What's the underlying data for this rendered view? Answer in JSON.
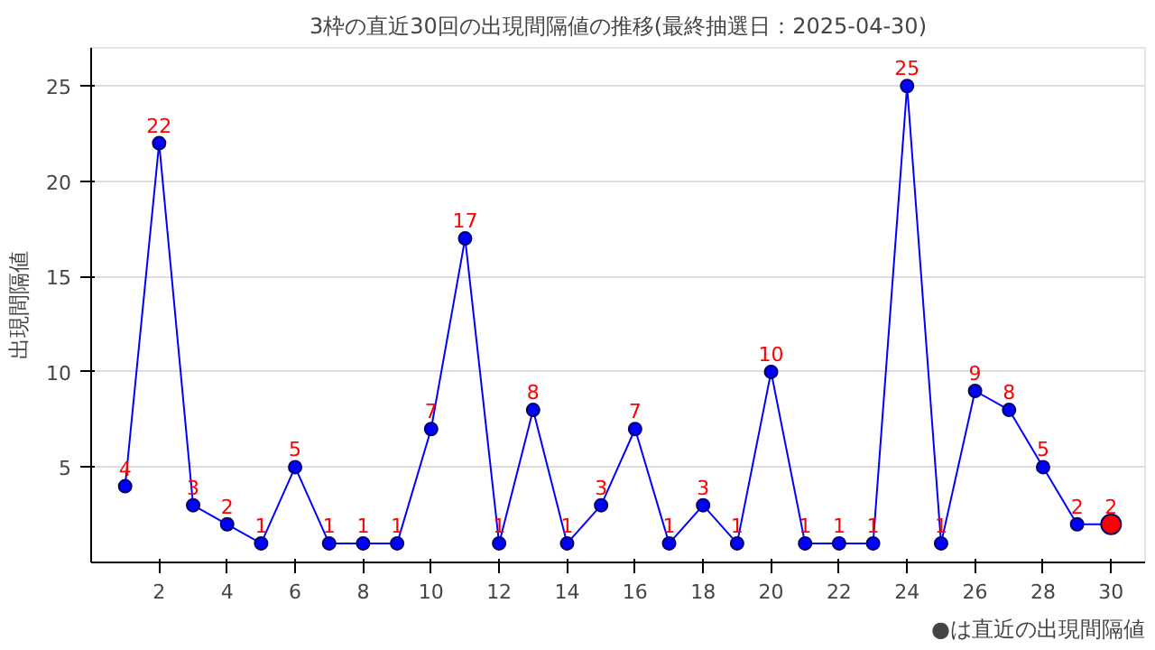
{
  "chart_data": {
    "type": "line",
    "title": "3枠の直近30回の出現間隔値の推移(最終抽選日：2025-04-30)",
    "ylabel": "出現間隔値",
    "x": [
      1,
      2,
      3,
      4,
      5,
      6,
      7,
      8,
      9,
      10,
      11,
      12,
      13,
      14,
      15,
      16,
      17,
      18,
      19,
      20,
      21,
      22,
      23,
      24,
      25,
      26,
      27,
      28,
      29,
      30
    ],
    "series": [
      {
        "color": "#0000ff",
        "colors": [
          "#0000ff",
          "#0000ff",
          "#0000ff",
          "#0000ff",
          "#0000ff",
          "#0000ff",
          "#0000ff",
          "#0000ff",
          "#0000ff",
          "#0000ff",
          "#0000ff",
          "#0000ff",
          "#0000ff",
          "#0000ff",
          "#0000ff",
          "#0000ff",
          "#0000ff",
          "#0000ff",
          "#0000ff",
          "#0000ff",
          "#0000ff",
          "#0000ff",
          "#0000ff",
          "#0000ff",
          "#0000ff",
          "#0000ff",
          "#0000ff",
          "#0000ff",
          "#0000ff",
          "#ff0000"
        ],
        "values": [
          4,
          22,
          3,
          2,
          1,
          5,
          1,
          1,
          1,
          7,
          17,
          1,
          8,
          1,
          3,
          7,
          1,
          3,
          1,
          10,
          1,
          1,
          1,
          25,
          1,
          9,
          8,
          5,
          2,
          2
        ]
      }
    ],
    "xlim": [
      0,
      31
    ],
    "xticks": [
      2,
      4,
      6,
      8,
      10,
      12,
      14,
      16,
      18,
      20,
      22,
      24,
      26,
      28,
      30
    ],
    "ylim": [
      0,
      27
    ],
    "yticks": [
      5,
      10,
      15,
      20,
      25
    ],
    "grid": "y",
    "marker": "circle",
    "line_style": "solid",
    "data_labels": true,
    "annotations": [
      "●は直近の出現間隔値"
    ]
  }
}
